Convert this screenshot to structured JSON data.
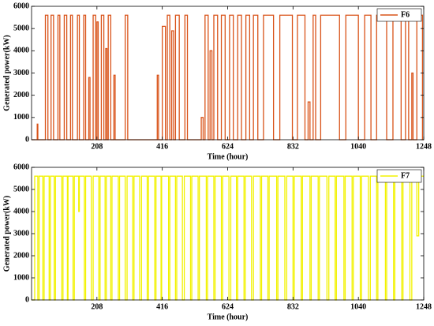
{
  "chart_data": [
    {
      "type": "line",
      "xlabel": "Time (hour)",
      "ylabel": "Generated power(kW)",
      "xlim": [
        0,
        1248
      ],
      "ylim": [
        0,
        6000
      ],
      "xticks": [
        208,
        416,
        624,
        832,
        1040,
        1248
      ],
      "yticks": [
        0,
        1000,
        2000,
        3000,
        4000,
        5000,
        6000
      ],
      "grid": false,
      "legend": "upper right",
      "x": [
        0,
        18,
        18,
        20,
        20,
        44,
        44,
        52,
        52,
        62,
        62,
        70,
        70,
        84,
        84,
        90,
        90,
        104,
        104,
        112,
        112,
        124,
        124,
        130,
        130,
        146,
        146,
        152,
        152,
        166,
        166,
        172,
        172,
        182,
        182,
        186,
        186,
        196,
        196,
        204,
        204,
        208,
        208,
        212,
        212,
        222,
        222,
        230,
        230,
        236,
        236,
        240,
        240,
        244,
        244,
        252,
        252,
        262,
        262,
        266,
        266,
        298,
        298,
        306,
        306,
        400,
        400,
        404,
        404,
        416,
        416,
        426,
        426,
        432,
        432,
        440,
        440,
        446,
        446,
        452,
        452,
        458,
        458,
        470,
        470,
        488,
        488,
        496,
        496,
        540,
        540,
        546,
        546,
        552,
        552,
        562,
        562,
        568,
        568,
        574,
        574,
        580,
        580,
        592,
        592,
        604,
        604,
        616,
        616,
        630,
        630,
        642,
        642,
        656,
        656,
        668,
        668,
        682,
        682,
        694,
        694,
        706,
        706,
        720,
        720,
        738,
        738,
        770,
        770,
        790,
        790,
        830,
        830,
        846,
        846,
        870,
        870,
        880,
        880,
        886,
        886,
        896,
        896,
        904,
        904,
        920,
        920,
        980,
        980,
        1000,
        1000,
        1040,
        1040,
        1060,
        1060,
        1080,
        1080,
        1098,
        1098,
        1130,
        1130,
        1150,
        1150,
        1176,
        1176,
        1190,
        1190,
        1200,
        1200,
        1210,
        1210,
        1214,
        1214,
        1226,
        1226,
        1244,
        1244,
        1248
      ],
      "series": [
        {
          "name": "F6",
          "color": "#d95319",
          "values": [
            0,
            0,
            700,
            700,
            0,
            0,
            5600,
            5600,
            0,
            0,
            5600,
            5600,
            0,
            0,
            5600,
            5600,
            0,
            0,
            5600,
            5600,
            0,
            0,
            5600,
            5600,
            0,
            0,
            5600,
            5600,
            0,
            0,
            5600,
            5600,
            0,
            0,
            2800,
            2800,
            0,
            0,
            5600,
            5600,
            0,
            0,
            5300,
            5300,
            0,
            0,
            5600,
            5600,
            0,
            0,
            4100,
            4100,
            0,
            0,
            5600,
            5600,
            0,
            0,
            2900,
            2900,
            0,
            0,
            5600,
            5600,
            0,
            0,
            2900,
            2900,
            0,
            0,
            5100,
            5100,
            0,
            0,
            5600,
            5600,
            0,
            0,
            4900,
            4900,
            0,
            0,
            5600,
            5600,
            0,
            0,
            5600,
            5600,
            0,
            0,
            1000,
            1000,
            0,
            0,
            5600,
            5600,
            0,
            0,
            4000,
            4000,
            0,
            0,
            5600,
            5600,
            0,
            0,
            5600,
            5600,
            0,
            0,
            5600,
            5600,
            0,
            0,
            5600,
            5600,
            0,
            0,
            5600,
            5600,
            0,
            0,
            5600,
            5600,
            0,
            0,
            5600,
            5600,
            0,
            0,
            5600,
            5600,
            0,
            0,
            5600,
            5600,
            0,
            0,
            1700,
            1700,
            0,
            0,
            5600,
            5600,
            0,
            0,
            5600,
            5600,
            0,
            0,
            5600,
            5600,
            0,
            0,
            5600,
            5600,
            0,
            0,
            5600,
            5600,
            0,
            0,
            5600,
            5600,
            0,
            0,
            5600,
            5600,
            0,
            0,
            3000,
            3000,
            0,
            0,
            5600,
            5600,
            0,
            0
          ]
        }
      ]
    },
    {
      "type": "line",
      "xlabel": "Time (hour)",
      "ylabel": "Generated power(kW)",
      "xlim": [
        0,
        1248
      ],
      "ylim": [
        0,
        6000
      ],
      "xticks": [
        208,
        416,
        624,
        832,
        1040,
        1248
      ],
      "yticks": [
        0,
        1000,
        2000,
        3000,
        4000,
        5000,
        6000
      ],
      "grid": false,
      "legend": "upper right",
      "x": [
        0,
        10,
        10,
        20,
        20,
        24,
        24,
        36,
        36,
        40,
        40,
        56,
        56,
        60,
        60,
        72,
        72,
        76,
        76,
        96,
        96,
        100,
        100,
        114,
        114,
        116,
        116,
        132,
        132,
        136,
        136,
        150,
        150,
        152,
        152,
        168,
        168,
        172,
        172,
        190,
        190,
        196,
        196,
        214,
        214,
        218,
        218,
        234,
        234,
        238,
        238,
        252,
        252,
        256,
        256,
        276,
        276,
        280,
        280,
        298,
        298,
        304,
        304,
        322,
        322,
        326,
        326,
        344,
        344,
        350,
        350,
        368,
        368,
        372,
        372,
        392,
        392,
        396,
        396,
        412,
        412,
        414,
        414,
        436,
        436,
        440,
        440,
        458,
        458,
        462,
        462,
        480,
        480,
        486,
        486,
        506,
        506,
        510,
        510,
        530,
        530,
        534,
        534,
        556,
        556,
        560,
        560,
        580,
        580,
        584,
        584,
        604,
        604,
        608,
        608,
        628,
        628,
        634,
        634,
        652,
        652,
        656,
        656,
        676,
        676,
        680,
        680,
        700,
        700,
        706,
        706,
        728,
        728,
        732,
        732,
        752,
        752,
        756,
        756,
        780,
        780,
        784,
        784,
        806,
        806,
        812,
        812,
        832,
        832,
        836,
        836,
        858,
        858,
        862,
        862,
        886,
        886,
        890,
        890,
        912,
        912,
        916,
        916,
        940,
        940,
        946,
        946,
        966,
        966,
        970,
        970,
        994,
        994,
        998,
        998,
        1020,
        1020,
        1024,
        1024,
        1046,
        1046,
        1050,
        1050,
        1072,
        1072,
        1078,
        1078,
        1098,
        1098,
        1102,
        1102,
        1126,
        1126,
        1130,
        1130,
        1152,
        1152,
        1156,
        1156,
        1178,
        1178,
        1182,
        1182,
        1204,
        1204,
        1210,
        1210,
        1226,
        1226,
        1232,
        1232,
        1248
      ],
      "series": [
        {
          "name": "F7",
          "color": "#f2f200",
          "values": [
            0,
            0,
            5600,
            5600,
            0,
            0,
            5600,
            5600,
            0,
            0,
            5600,
            5600,
            0,
            0,
            5600,
            5600,
            0,
            0,
            5600,
            5600,
            0,
            0,
            5600,
            5600,
            0,
            0,
            5600,
            5600,
            0,
            0,
            5600,
            5600,
            4000,
            4000,
            5600,
            5600,
            0,
            0,
            5600,
            5600,
            0,
            0,
            5600,
            5600,
            0,
            0,
            5600,
            5600,
            0,
            0,
            5600,
            5600,
            0,
            0,
            5600,
            5600,
            0,
            0,
            5600,
            5600,
            0,
            0,
            5600,
            5600,
            0,
            0,
            5600,
            5600,
            0,
            0,
            5600,
            5600,
            0,
            0,
            5600,
            5600,
            0,
            0,
            5600,
            5600,
            0,
            0,
            5600,
            5600,
            0,
            0,
            5600,
            5600,
            0,
            0,
            5600,
            5600,
            0,
            0,
            5600,
            5600,
            0,
            0,
            5600,
            5600,
            0,
            0,
            5600,
            5600,
            0,
            0,
            5600,
            5600,
            0,
            0,
            5600,
            5600,
            0,
            0,
            5600,
            5600,
            0,
            0,
            5600,
            5600,
            0,
            0,
            5600,
            5600,
            0,
            0,
            5600,
            5600,
            0,
            0,
            5600,
            5600,
            0,
            0,
            5600,
            5600,
            0,
            0,
            5600,
            5600,
            0,
            0,
            5600,
            5600,
            0,
            0,
            5600,
            5600,
            0,
            0,
            5600,
            5600,
            0,
            0,
            5600,
            5600,
            0,
            0,
            5600,
            5600,
            0,
            0,
            5600,
            5600,
            0,
            0,
            5600,
            5600,
            0,
            0,
            5600,
            5600,
            0,
            0,
            5600,
            5600,
            0,
            0,
            5600,
            5600,
            0,
            0,
            5600,
            5600,
            0,
            0,
            5600,
            5600,
            0,
            0,
            5600,
            5600,
            0,
            0,
            5600,
            5600,
            0,
            0,
            5600,
            5600,
            0,
            0,
            5600,
            5600,
            0,
            0,
            5600,
            5600,
            2900,
            2900,
            5600,
            5600
          ]
        }
      ]
    }
  ]
}
